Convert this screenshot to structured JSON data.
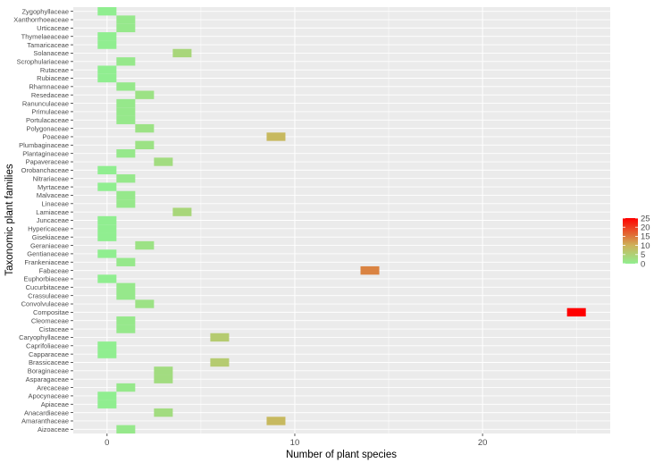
{
  "chart_data": {
    "type": "heatmap",
    "title": "",
    "xlabel": "Number of plant species",
    "ylabel": "Taxonomic plant families",
    "xlim": [
      -1.8,
      26.8
    ],
    "x_ticks": [
      0,
      10,
      20
    ],
    "x_tick_labels": [
      "0",
      "10",
      "20"
    ],
    "grid": true,
    "legend_position": "right",
    "color_scale": {
      "min": 0,
      "max": 25,
      "low_color": "#90ee90",
      "mid_color": "#cdb35a",
      "high_color": "#ff0000",
      "ticks": [
        0,
        5,
        10,
        15,
        20,
        25
      ],
      "tick_labels": [
        "0",
        "5",
        "10",
        "15",
        "20",
        "25"
      ]
    },
    "families": [
      "Zygophyllaceae",
      "Xanthorrhoeaceae",
      "Urticaceae",
      "Thymelaeaceae",
      "Tamaricaceae",
      "Solanaceae",
      "Scrophulariaceae",
      "Rutaceae",
      "Rubiaceae",
      "Rhamnaceae",
      "Resedaceae",
      "Ranunculaceae",
      "Primulaceae",
      "Portulacaceae",
      "Polygonaceae",
      "Poaceae",
      "Plumbaginaceae",
      "Plantaginaceae",
      "Papaveraceae",
      "Orobanchaceae",
      "Nitrariaceae",
      "Myrtaceae",
      "Malvaceae",
      "Linaceae",
      "Lamiaceae",
      "Juncaceae",
      "Hypericaceae",
      "Gisekiaceae",
      "Geraniaceae",
      "Gentianaceae",
      "Frankeniaceae",
      "Fabaceae",
      "Euphorbiaceae",
      "Cucurbitaceae",
      "Crassulaceae",
      "Convolvulaceae",
      "Compositae",
      "Cleomaceae",
      "Cistaceae",
      "Caryophyllaceae",
      "Caprifoliaceae",
      "Capparaceae",
      "Brassicaceae",
      "Boraginaceae",
      "Asparagaceae",
      "Arecaceae",
      "Apocynaceae",
      "Apiaceae",
      "Anacardiaceae",
      "Amaranthaceae",
      "Aizoaceae"
    ],
    "values": [
      0,
      1,
      1,
      0,
      0,
      4,
      1,
      0,
      0,
      1,
      2,
      1,
      1,
      1,
      2,
      9,
      2,
      1,
      3,
      0,
      1,
      0,
      1,
      1,
      4,
      0,
      0,
      0,
      2,
      0,
      1,
      14,
      0,
      1,
      1,
      2,
      25,
      1,
      1,
      6,
      0,
      0,
      6,
      3,
      3,
      1,
      0,
      0,
      3,
      9,
      1
    ]
  }
}
